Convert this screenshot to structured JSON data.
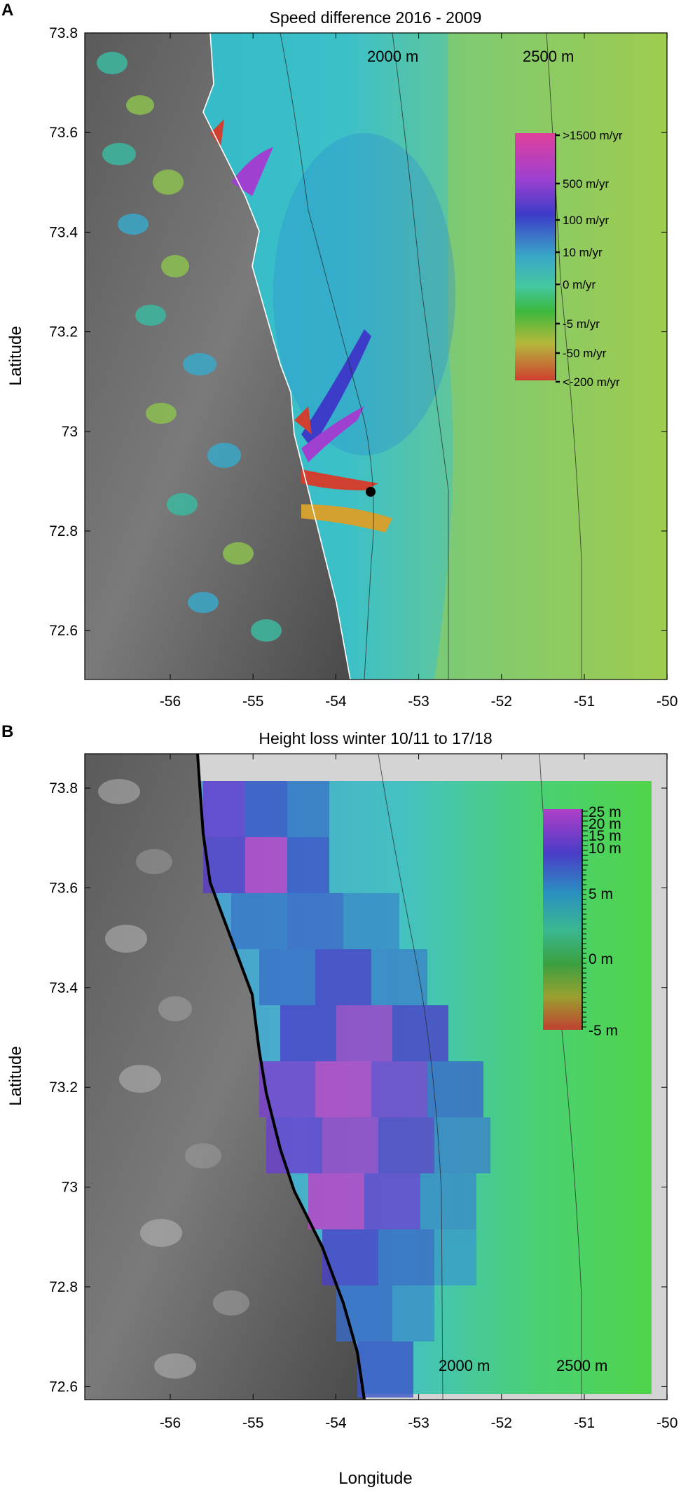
{
  "panel_a": {
    "letter": "A",
    "title": "Speed difference 2016 - 2009",
    "ylabel": "Latitude",
    "xlabel": "",
    "x_ticks": [
      "-56",
      "-55",
      "-54",
      "-53",
      "-52",
      "-51",
      "-50"
    ],
    "y_ticks": [
      "73.8",
      "73.6",
      "73.4",
      "73.2",
      "73",
      "72.8",
      "72.6"
    ],
    "contour_labels": [
      "2000 m",
      "2500 m"
    ],
    "colorbar_labels": [
      ">1500 m/yr",
      "500 m/yr",
      "100 m/yr",
      "10 m/yr",
      "0 m/yr",
      "-5 m/yr",
      "-50 m/yr",
      "<-200 m/yr"
    ],
    "colorbar_colors": [
      "#e0409a",
      "#a040d0",
      "#3c3cc8",
      "#3aa8c8",
      "#44c8a0",
      "#3cb83c",
      "#b4b83c",
      "#d04030"
    ]
  },
  "panel_b": {
    "letter": "B",
    "title": "Height loss winter 10/11 to 17/18",
    "ylabel": "Latitude",
    "xlabel": "Longitude",
    "x_ticks": [
      "-56",
      "-55",
      "-54",
      "-53",
      "-52",
      "-51",
      "-50"
    ],
    "y_ticks": [
      "73.8",
      "73.6",
      "73.4",
      "73.2",
      "73",
      "72.8",
      "72.6"
    ],
    "contour_labels": [
      "2000 m",
      "2500 m"
    ],
    "colorbar_labels": [
      "25 m",
      "20 m",
      "15 m",
      "10 m",
      "5 m",
      "0 m",
      "-5 m"
    ],
    "colorbar_colors": [
      "#b040c8",
      "#4a3cc8",
      "#2a90c0",
      "#3ab890",
      "#3aa040",
      "#9aa030",
      "#c04030"
    ]
  }
}
